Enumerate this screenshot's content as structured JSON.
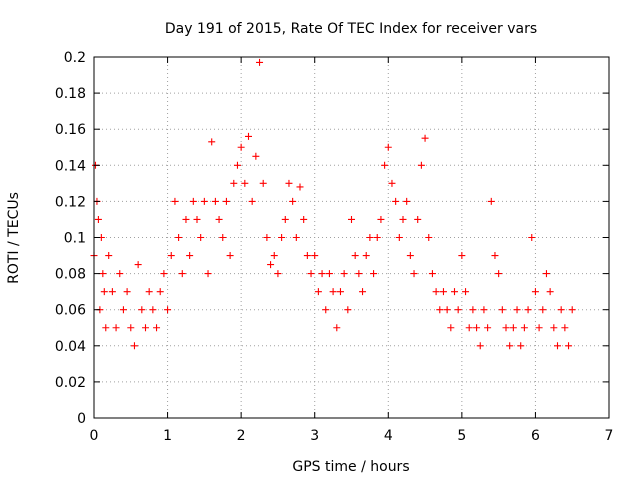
{
  "chart_data": {
    "type": "scatter",
    "title": "Day 191 of 2015, Rate Of TEC Index for receiver vars",
    "xlabel": "GPS time / hours",
    "ylabel": "ROTI / TECUs",
    "xlim": [
      0,
      7
    ],
    "ylim": [
      0,
      0.2
    ],
    "xticks": [
      "0",
      "1",
      "2",
      "3",
      "4",
      "5",
      "6",
      "7"
    ],
    "yticks": [
      "0",
      "0.02",
      "0.04",
      "0.06",
      "0.08",
      "0.1",
      "0.12",
      "0.14",
      "0.16",
      "0.18",
      "0.2"
    ],
    "grid": true,
    "marker": "+",
    "color": "#ff0000",
    "series": [
      {
        "name": "ROTI",
        "x": [
          0.0,
          0.02,
          0.04,
          0.06,
          0.08,
          0.1,
          0.12,
          0.14,
          0.16,
          0.2,
          0.25,
          0.3,
          0.35,
          0.4,
          0.45,
          0.5,
          0.55,
          0.6,
          0.65,
          0.7,
          0.75,
          0.8,
          0.85,
          0.9,
          0.95,
          1.0,
          1.05,
          1.1,
          1.15,
          1.2,
          1.25,
          1.3,
          1.35,
          1.4,
          1.45,
          1.5,
          1.55,
          1.6,
          1.65,
          1.7,
          1.75,
          1.8,
          1.85,
          1.9,
          1.95,
          2.0,
          2.05,
          2.1,
          2.15,
          2.2,
          2.25,
          2.3,
          2.35,
          2.4,
          2.45,
          2.5,
          2.55,
          2.6,
          2.65,
          2.7,
          2.75,
          2.8,
          2.85,
          2.9,
          2.95,
          3.0,
          3.05,
          3.1,
          3.15,
          3.2,
          3.25,
          3.3,
          3.35,
          3.4,
          3.45,
          3.5,
          3.55,
          3.6,
          3.65,
          3.7,
          3.75,
          3.8,
          3.85,
          3.9,
          3.95,
          4.0,
          4.05,
          4.1,
          4.15,
          4.2,
          4.25,
          4.3,
          4.35,
          4.4,
          4.45,
          4.5,
          4.55,
          4.6,
          4.65,
          4.7,
          4.75,
          4.8,
          4.85,
          4.9,
          4.95,
          5.0,
          5.05,
          5.1,
          5.15,
          5.2,
          5.25,
          5.3,
          5.35,
          5.4,
          5.45,
          5.5,
          5.55,
          5.6,
          5.65,
          5.7,
          5.75,
          5.8,
          5.85,
          5.9,
          5.95,
          6.0,
          6.05,
          6.1,
          6.15,
          6.2,
          6.25,
          6.3,
          6.35,
          6.4,
          6.45,
          6.5
        ],
        "y": [
          0.09,
          0.14,
          0.12,
          0.11,
          0.06,
          0.1,
          0.08,
          0.07,
          0.05,
          0.09,
          0.07,
          0.05,
          0.08,
          0.06,
          0.07,
          0.05,
          0.04,
          0.085,
          0.06,
          0.05,
          0.07,
          0.06,
          0.05,
          0.07,
          0.08,
          0.06,
          0.09,
          0.12,
          0.1,
          0.08,
          0.11,
          0.09,
          0.12,
          0.11,
          0.1,
          0.12,
          0.08,
          0.153,
          0.12,
          0.11,
          0.1,
          0.12,
          0.09,
          0.13,
          0.14,
          0.15,
          0.13,
          0.156,
          0.12,
          0.145,
          0.197,
          0.13,
          0.1,
          0.085,
          0.09,
          0.08,
          0.1,
          0.11,
          0.13,
          0.12,
          0.1,
          0.128,
          0.11,
          0.09,
          0.08,
          0.09,
          0.07,
          0.08,
          0.06,
          0.08,
          0.07,
          0.05,
          0.07,
          0.08,
          0.06,
          0.11,
          0.09,
          0.08,
          0.07,
          0.09,
          0.1,
          0.08,
          0.1,
          0.11,
          0.14,
          0.15,
          0.13,
          0.12,
          0.1,
          0.11,
          0.12,
          0.09,
          0.08,
          0.11,
          0.14,
          0.155,
          0.1,
          0.08,
          0.07,
          0.06,
          0.07,
          0.06,
          0.05,
          0.07,
          0.06,
          0.09,
          0.07,
          0.05,
          0.06,
          0.05,
          0.04,
          0.06,
          0.05,
          0.12,
          0.09,
          0.08,
          0.06,
          0.05,
          0.04,
          0.05,
          0.06,
          0.04,
          0.05,
          0.06,
          0.1,
          0.07,
          0.05,
          0.06,
          0.08,
          0.07,
          0.05,
          0.04,
          0.06,
          0.05,
          0.04,
          0.06
        ]
      }
    ]
  }
}
